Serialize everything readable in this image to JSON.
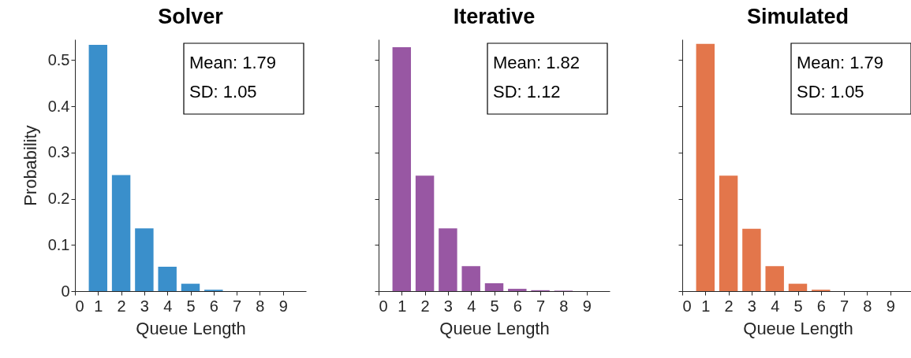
{
  "chart_data": [
    {
      "type": "bar",
      "title": "Solver",
      "xlabel": "Queue Length",
      "ylabel": "Probability",
      "x": [
        1,
        2,
        3,
        4,
        5,
        6,
        7,
        8,
        9
      ],
      "series": [
        {
          "color": "#3a8fcb",
          "values": [
            0.533,
            0.251,
            0.136,
            0.053,
            0.016,
            0.003,
            0,
            0,
            0
          ]
        }
      ],
      "xlim": [
        0,
        10
      ],
      "xticks": [
        0,
        1,
        2,
        3,
        4,
        5,
        6,
        7,
        8,
        9
      ],
      "ylim": [
        0,
        0.545
      ],
      "yticks": [
        {
          "value": 0,
          "label": "0"
        },
        0.1,
        0.2,
        0.3,
        0.4,
        0.5
      ],
      "grid": false,
      "annotations": [
        "Mean: 1.79",
        "SD: 1.05"
      ]
    },
    {
      "type": "bar",
      "title": "Iterative",
      "xlabel": "Queue Length",
      "x": [
        1,
        2,
        3,
        4,
        5,
        6,
        7,
        8,
        9
      ],
      "series": [
        {
          "color": "#9857a3",
          "values": [
            0.528,
            0.25,
            0.136,
            0.054,
            0.017,
            0.005,
            0.002,
            0.001,
            0
          ]
        }
      ],
      "xlim": [
        0,
        10
      ],
      "xticks": [
        0,
        1,
        2,
        3,
        4,
        5,
        6,
        7,
        8,
        9
      ],
      "ylim": [
        0,
        0.545
      ],
      "yticks": [
        0,
        0.1,
        0.2,
        0.3,
        0.4,
        0.5
      ],
      "grid": false,
      "tick_labels": "x",
      "annotations": [
        "Mean: 1.82",
        "SD: 1.12"
      ]
    },
    {
      "type": "bar",
      "title": "Simulated",
      "xlabel": "Queue Length",
      "x": [
        1,
        2,
        3,
        4,
        5,
        6,
        7,
        8,
        9
      ],
      "series": [
        {
          "color": "#e3764b",
          "values": [
            0.535,
            0.25,
            0.135,
            0.054,
            0.016,
            0.003,
            0,
            0,
            0
          ]
        }
      ],
      "xlim": [
        0,
        10
      ],
      "xticks": [
        0,
        1,
        2,
        3,
        4,
        5,
        6,
        7,
        8,
        9
      ],
      "ylim": [
        0,
        0.545
      ],
      "yticks": [
        0,
        0.1,
        0.2,
        0.3,
        0.4,
        0.5
      ],
      "grid": false,
      "tick_labels": "x",
      "annotations": [
        "Mean: 1.79",
        "SD: 1.05"
      ]
    }
  ]
}
